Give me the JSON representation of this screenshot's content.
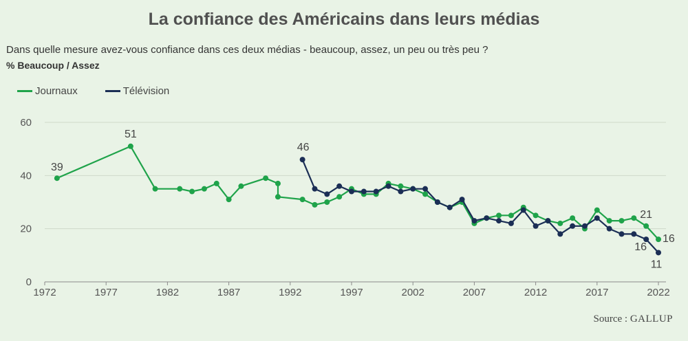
{
  "title": "La confiance des Américains dans leurs médias",
  "subtitle": "Dans quelle mesure avez-vous confiance dans ces deux médias - beaucoup, assez, un peu ou très peu ?",
  "ylabel": "% Beaucoup / Assez",
  "source_label": "Source : ",
  "source_name": "GALLUP",
  "colors": {
    "journaux": "#1fa34a",
    "television": "#1b2e55",
    "grid": "#cfd9cb",
    "axis": "#8a8a8a"
  },
  "chart_data": {
    "type": "line",
    "title": "La confiance des Américains dans leurs médias",
    "ylabel": "% Beaucoup / Assez",
    "xlim": [
      1972,
      2022
    ],
    "ylim": [
      0,
      60
    ],
    "xticks": [
      1972,
      1977,
      1982,
      1987,
      1992,
      1997,
      2002,
      2007,
      2012,
      2017,
      2022
    ],
    "yticks": [
      0,
      20,
      40,
      60
    ],
    "grid": true,
    "legend": "top-left",
    "series": [
      {
        "name": "Journaux",
        "points": [
          [
            1973,
            39
          ],
          [
            1979,
            51
          ],
          [
            1981,
            35
          ],
          [
            1983,
            35
          ],
          [
            1984,
            34
          ],
          [
            1985,
            35
          ],
          [
            1986,
            37
          ],
          [
            1987,
            31
          ],
          [
            1988,
            36
          ],
          [
            1990,
            39
          ],
          [
            1991,
            37
          ],
          [
            1991,
            32
          ],
          [
            1993,
            31
          ],
          [
            1994,
            29
          ],
          [
            1995,
            30
          ],
          [
            1996,
            32
          ],
          [
            1997,
            35
          ],
          [
            1998,
            33
          ],
          [
            1999,
            33
          ],
          [
            2000,
            37
          ],
          [
            2001,
            36
          ],
          [
            2002,
            35
          ],
          [
            2003,
            33
          ],
          [
            2004,
            30
          ],
          [
            2005,
            28
          ],
          [
            2006,
            30
          ],
          [
            2007,
            22
          ],
          [
            2008,
            24
          ],
          [
            2009,
            25
          ],
          [
            2010,
            25
          ],
          [
            2011,
            28
          ],
          [
            2012,
            25
          ],
          [
            2013,
            23
          ],
          [
            2014,
            22
          ],
          [
            2015,
            24
          ],
          [
            2016,
            20
          ],
          [
            2017,
            27
          ],
          [
            2018,
            23
          ],
          [
            2019,
            23
          ],
          [
            2020,
            24
          ],
          [
            2021,
            21
          ],
          [
            2022,
            16
          ]
        ]
      },
      {
        "name": "Télévision",
        "points": [
          [
            1993,
            46
          ],
          [
            1994,
            35
          ],
          [
            1995,
            33
          ],
          [
            1996,
            36
          ],
          [
            1997,
            34
          ],
          [
            1998,
            34
          ],
          [
            1999,
            34
          ],
          [
            2000,
            36
          ],
          [
            2001,
            34
          ],
          [
            2002,
            35
          ],
          [
            2003,
            35
          ],
          [
            2004,
            30
          ],
          [
            2005,
            28
          ],
          [
            2006,
            31
          ],
          [
            2007,
            23
          ],
          [
            2008,
            24
          ],
          [
            2009,
            23
          ],
          [
            2010,
            22
          ],
          [
            2011,
            27
          ],
          [
            2012,
            21
          ],
          [
            2013,
            23
          ],
          [
            2014,
            18
          ],
          [
            2015,
            21
          ],
          [
            2016,
            21
          ],
          [
            2017,
            24
          ],
          [
            2018,
            20
          ],
          [
            2019,
            18
          ],
          [
            2020,
            18
          ],
          [
            2021,
            16
          ],
          [
            2022,
            11
          ]
        ]
      }
    ],
    "annotations": [
      {
        "series": "Journaux",
        "x": 1973,
        "y": 39,
        "text": "39"
      },
      {
        "series": "Journaux",
        "x": 1979,
        "y": 51,
        "text": "51"
      },
      {
        "series": "Télévision",
        "x": 1993,
        "y": 46,
        "text": "46"
      },
      {
        "series": "Journaux",
        "x": 2021,
        "y": 21,
        "text": "21"
      },
      {
        "series": "Journaux",
        "x": 2022,
        "y": 16,
        "text": "16"
      },
      {
        "series": "Télévision",
        "x": 2021,
        "y": 16,
        "text": "16"
      },
      {
        "series": "Télévision",
        "x": 2022,
        "y": 11,
        "text": "11"
      }
    ]
  }
}
